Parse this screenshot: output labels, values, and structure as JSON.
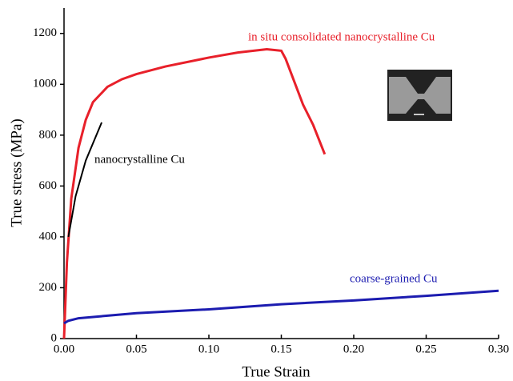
{
  "chart_data": {
    "type": "line",
    "x_label": "True Strain",
    "y_label": "True stress (MPa)",
    "xlim": [
      0,
      0.3
    ],
    "ylim": [
      0,
      1300
    ],
    "xticks": [
      {
        "value": 0,
        "label": "0.00"
      },
      {
        "value": 0.05,
        "label": "0.05"
      },
      {
        "value": 0.1,
        "label": "0.10"
      },
      {
        "value": 0.15,
        "label": "0.15"
      },
      {
        "value": 0.2,
        "label": "0.20"
      },
      {
        "value": 0.25,
        "label": "0.25"
      },
      {
        "value": 0.3,
        "label": "0.30"
      }
    ],
    "yticks": [
      0,
      200,
      400,
      600,
      800,
      1000,
      1200
    ],
    "series": [
      {
        "name": "in situ consolidated nanocrystalline Cu",
        "color": "#e8202a",
        "x": [
          0,
          0.002,
          0.005,
          0.01,
          0.015,
          0.02,
          0.03,
          0.04,
          0.05,
          0.07,
          0.1,
          0.12,
          0.14,
          0.15,
          0.153,
          0.165,
          0.172,
          0.18
        ],
        "values": [
          0,
          300,
          550,
          750,
          860,
          930,
          990,
          1020,
          1040,
          1070,
          1105,
          1125,
          1138,
          1132,
          1100,
          920,
          840,
          725
        ]
      },
      {
        "name": "nanocrystalline Cu",
        "color": "#000000",
        "x": [
          0.003,
          0.008,
          0.015,
          0.026
        ],
        "values": [
          400,
          560,
          700,
          850
        ]
      },
      {
        "name": "coarse-grained Cu",
        "color": "#1c1cb0",
        "x": [
          0,
          0.003,
          0.01,
          0.03,
          0.05,
          0.1,
          0.15,
          0.2,
          0.25,
          0.3
        ],
        "values": [
          60,
          70,
          80,
          90,
          100,
          115,
          135,
          150,
          168,
          188
        ]
      }
    ]
  }
}
